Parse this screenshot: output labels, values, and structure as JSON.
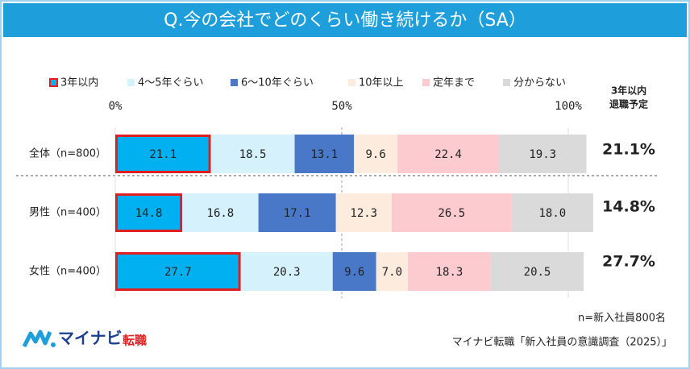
{
  "chart_data": {
    "type": "stacked_barh",
    "title": "Q.今の会社でどのくらい働き続けるか（SA）",
    "categories": [
      "全体（n=800）",
      "男性（n=400）",
      "女性（n=400）"
    ],
    "series": [
      {
        "name": "3年以内",
        "color": "#00b0f0",
        "values": [
          21.1,
          14.8,
          27.7
        ],
        "value_labels": [
          "21.1",
          "14.8",
          "27.7"
        ]
      },
      {
        "name": "4～5年ぐらい",
        "color": "#d5f1fc",
        "values": [
          18.5,
          16.8,
          20.3
        ],
        "value_labels": [
          "18.5",
          "16.8",
          "20.3"
        ]
      },
      {
        "name": "6～10年ぐらい",
        "color": "#4a78c8",
        "values": [
          13.1,
          17.1,
          9.6
        ],
        "value_labels": [
          "13.1",
          "17.1",
          "9.6"
        ]
      },
      {
        "name": "10年以上",
        "color": "#fdebdd",
        "values": [
          9.6,
          12.3,
          7.0
        ],
        "value_labels": [
          "9.6",
          "12.3",
          "7.0"
        ]
      },
      {
        "name": "定年まで",
        "color": "#fbcbcf",
        "values": [
          22.4,
          26.5,
          18.3
        ],
        "value_labels": [
          "22.4",
          "26.5",
          "18.3"
        ]
      },
      {
        "name": "分からない",
        "color": "#dadada",
        "values": [
          19.3,
          18.0,
          20.5
        ],
        "value_labels": [
          "19.3",
          "18.0",
          "20.5"
        ]
      }
    ],
    "highlight_border": "#e02020",
    "xlim": [
      0,
      100
    ],
    "xticks": [
      {
        "value": 0,
        "label": "0%"
      },
      {
        "value": 50,
        "label": "50%"
      },
      {
        "value": 100,
        "label": "100%"
      }
    ],
    "grid": true,
    "side_header": [
      "3年以内",
      "退職予定"
    ],
    "side_labels": [
      "21.1%",
      "14.8%",
      "27.7%"
    ],
    "note": "n=新入社員800名",
    "source": "マイナビ転職「新入社員の意識調査（2025）」",
    "logo": [
      "マイナビ",
      "転職"
    ]
  }
}
